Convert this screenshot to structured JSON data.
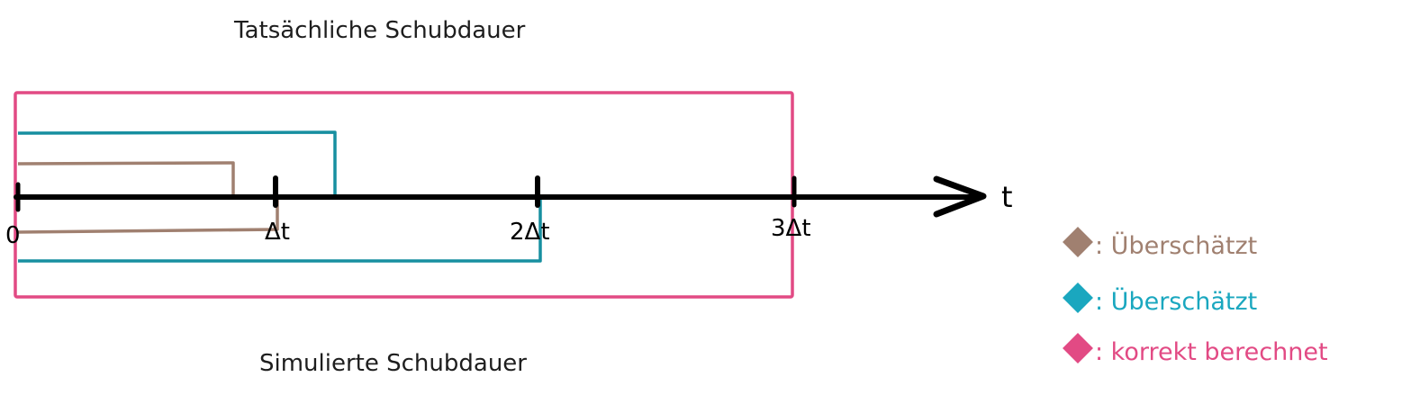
{
  "title_top": "Tatsächliche Schubdauer",
  "title_bottom": "Simulierte Schubdauer",
  "axis": {
    "label": "t",
    "ticks": [
      "0",
      "Δt",
      "2Δt",
      "3Δt"
    ]
  },
  "legend": [
    {
      "text": ": Überschätzt",
      "color": "#a08070"
    },
    {
      "text": ": Überschätzt",
      "color": "#1aa7bf"
    },
    {
      "text": ": korrekt berechnet",
      "color": "#e24a84"
    }
  ],
  "colors": {
    "axis": "#000000",
    "brown": "#a08070",
    "teal": "#178fa0",
    "pink": "#e24a84"
  }
}
